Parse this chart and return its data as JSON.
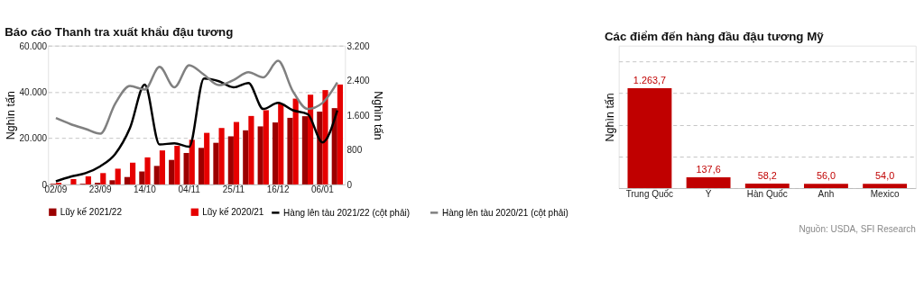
{
  "chart_data": [
    {
      "type": "bar",
      "title": "Báo cáo Thanh tra xuất khẩu đậu tương",
      "ylabel": "Nghìn tấn",
      "y2label": "Nghìn tấn",
      "categories": [
        "02/09",
        null,
        null,
        "23/09",
        null,
        null,
        "14/10",
        null,
        null,
        "04/11",
        null,
        null,
        "25/11",
        null,
        null,
        "16/12",
        null,
        null,
        "06/01",
        null
      ],
      "series": [
        {
          "name": "Lũy kế 2021/22",
          "color": "#9b0000",
          "values": [
            300,
            0,
            300,
            700,
            1800,
            3200,
            5600,
            8000,
            10600,
            13600,
            15800,
            18000,
            20800,
            23400,
            25100,
            26800,
            28800,
            29500,
            31500,
            33000
          ]
        },
        {
          "name": "Lũy kế 2020/21",
          "color": "#e60000",
          "values": [
            700,
            2300,
            3500,
            4900,
            6800,
            9400,
            11700,
            14700,
            16700,
            19300,
            22300,
            24400,
            27000,
            29600,
            32100,
            35000,
            37100,
            38800,
            40800,
            43200
          ]
        },
        {
          "name": "Hàng lên tàu 2021/22 (cột phải)",
          "type": "line",
          "axis": "y2",
          "color": "#000000",
          "values": [
            70,
            180,
            260,
            420,
            700,
            1300,
            2300,
            920,
            950,
            870,
            2440,
            2380,
            2240,
            2340,
            1740,
            1880,
            1710,
            1620,
            970,
            1710
          ]
        },
        {
          "name": "Hàng lên tàu 2020/21 (cột phải)",
          "type": "line",
          "axis": "y2",
          "color": "#808080",
          "values": [
            1530,
            1390,
            1280,
            1170,
            1860,
            2270,
            2190,
            2710,
            2240,
            2750,
            2530,
            2290,
            2410,
            2590,
            2470,
            2850,
            2150,
            1740,
            1880,
            2350
          ]
        }
      ],
      "ylim": [
        0,
        60000
      ],
      "yticks": [
        0,
        {
          "value": 20000,
          "label": "20.000"
        },
        {
          "value": 40000,
          "label": "40.000"
        },
        {
          "value": 60000,
          "label": "60.000"
        }
      ],
      "y2lim": [
        0,
        3200
      ],
      "y2ticks": [
        0,
        800,
        {
          "value": 1600,
          "label": "1.600"
        },
        {
          "value": 2400,
          "label": "2.400"
        },
        {
          "value": 3200,
          "label": "3.200"
        }
      ],
      "grid": "y",
      "legend": "bottom",
      "line_style": "solid",
      "marker": "none"
    },
    {
      "type": "bar",
      "title": "Các điểm đến hàng đầu đậu tương Mỹ",
      "ylabel": "Nghìn tấn",
      "categories": [
        "Trung Quốc",
        "Ý",
        "Hàn Quốc",
        "Anh",
        "Mexico"
      ],
      "values": [
        1263.7,
        137.6,
        58.2,
        56.0,
        54.0
      ],
      "color": "#c00000",
      "value_labels": [
        "1.263,7",
        "137,6",
        "58,2",
        "56,0",
        "54,0"
      ],
      "ylim": [
        0,
        1800
      ],
      "yticks": [
        {
          "value": 0,
          "label": null
        },
        {
          "value": 400,
          "label": null
        },
        {
          "value": 800,
          "label": null
        },
        {
          "value": 1200,
          "label": null
        },
        {
          "value": 1600,
          "label": null
        }
      ],
      "tick_labels": "x",
      "grid": "y",
      "annotations": [
        "Nguồn: USDA, SFI Research"
      ]
    }
  ]
}
